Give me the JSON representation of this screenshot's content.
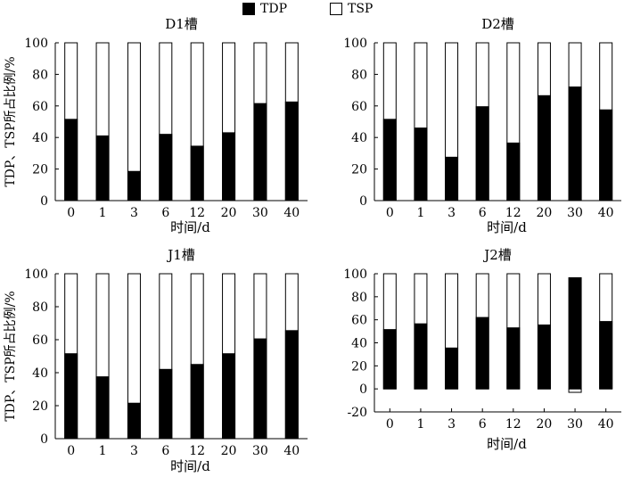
{
  "legend": [
    {
      "label": "TDP",
      "color": "#000000"
    },
    {
      "label": "TSP",
      "color": "#ffffff"
    }
  ],
  "chart_data": [
    {
      "type": "bar",
      "title": "D1槽",
      "xlabel": "时间/d",
      "ylabel": "TDP、TSP所占比例/%",
      "categories": [
        "0",
        "1",
        "3",
        "6",
        "12",
        "20",
        "30",
        "40"
      ],
      "series": [
        {
          "name": "TDP",
          "values": [
            51.5,
            41,
            18.5,
            42,
            34.5,
            43,
            61.5,
            62.5
          ]
        },
        {
          "name": "TSP",
          "values": [
            100,
            100,
            100,
            100,
            100,
            100,
            100,
            100
          ]
        }
      ],
      "ylim": [
        0,
        100
      ],
      "yticks": [
        0,
        20,
        40,
        60,
        80,
        100
      ]
    },
    {
      "type": "bar",
      "title": "D2槽",
      "xlabel": "时间/d",
      "ylabel": "",
      "categories": [
        "0",
        "1",
        "3",
        "6",
        "12",
        "20",
        "30",
        "40"
      ],
      "series": [
        {
          "name": "TDP",
          "values": [
            51.5,
            46,
            27.5,
            59.5,
            36.5,
            66.5,
            72,
            57.5
          ]
        },
        {
          "name": "TSP",
          "values": [
            100,
            100,
            100,
            100,
            100,
            100,
            100,
            100
          ]
        }
      ],
      "ylim": [
        0,
        100
      ],
      "yticks": [
        0,
        20,
        40,
        60,
        80,
        100
      ]
    },
    {
      "type": "bar",
      "title": "J1槽",
      "xlabel": "时间/d",
      "ylabel": "TDP、TSP所占比例/%",
      "categories": [
        "0",
        "1",
        "3",
        "6",
        "12",
        "20",
        "30",
        "40"
      ],
      "series": [
        {
          "name": "TDP",
          "values": [
            51.5,
            37.5,
            21.5,
            42,
            45,
            51.5,
            60.5,
            65.5
          ]
        },
        {
          "name": "TSP",
          "values": [
            100,
            100,
            100,
            100,
            100,
            100,
            100,
            100
          ]
        }
      ],
      "ylim": [
        0,
        100
      ],
      "yticks": [
        0,
        20,
        40,
        60,
        80,
        100
      ]
    },
    {
      "type": "bar",
      "title": "J2槽",
      "xlabel": "时间/d",
      "ylabel": "",
      "categories": [
        "0",
        "1",
        "3",
        "6",
        "12",
        "20",
        "30",
        "40"
      ],
      "series": [
        {
          "name": "TDP",
          "values": [
            51.5,
            56.5,
            35.5,
            62,
            53,
            55.5,
            96.5,
            58.5
          ]
        },
        {
          "name": "TSP",
          "values": [
            100,
            100,
            100,
            100,
            100,
            100,
            -3,
            100
          ]
        }
      ],
      "ylim": [
        -20,
        100
      ],
      "yticks": [
        -20,
        0,
        20,
        40,
        60,
        80,
        100
      ]
    }
  ]
}
